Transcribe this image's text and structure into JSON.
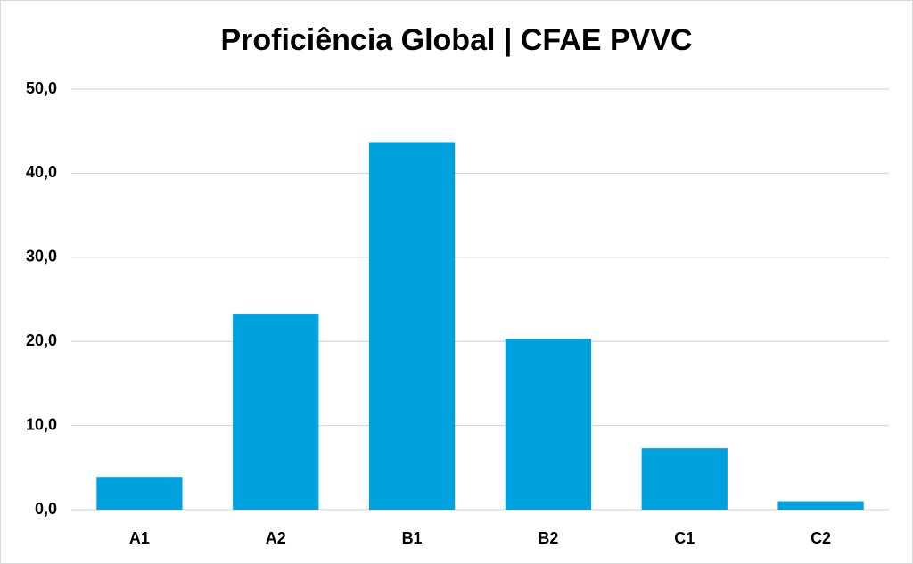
{
  "chart_data": {
    "type": "bar",
    "title": "Proficiência Global | CFAE PVVC",
    "categories": [
      "A1",
      "A2",
      "B1",
      "B2",
      "C1",
      "C2"
    ],
    "values": [
      3.9,
      23.3,
      43.7,
      20.3,
      7.3,
      1.0
    ],
    "color": "#00a2de",
    "ylim": [
      0,
      50
    ],
    "yticks": [
      {
        "value": 0,
        "label": "0,0"
      },
      {
        "value": 10,
        "label": "10,0"
      },
      {
        "value": 20,
        "label": "20,0"
      },
      {
        "value": 30,
        "label": "30,0"
      },
      {
        "value": 40,
        "label": "40,0"
      },
      {
        "value": 50,
        "label": "50,0"
      }
    ],
    "grid": true
  }
}
